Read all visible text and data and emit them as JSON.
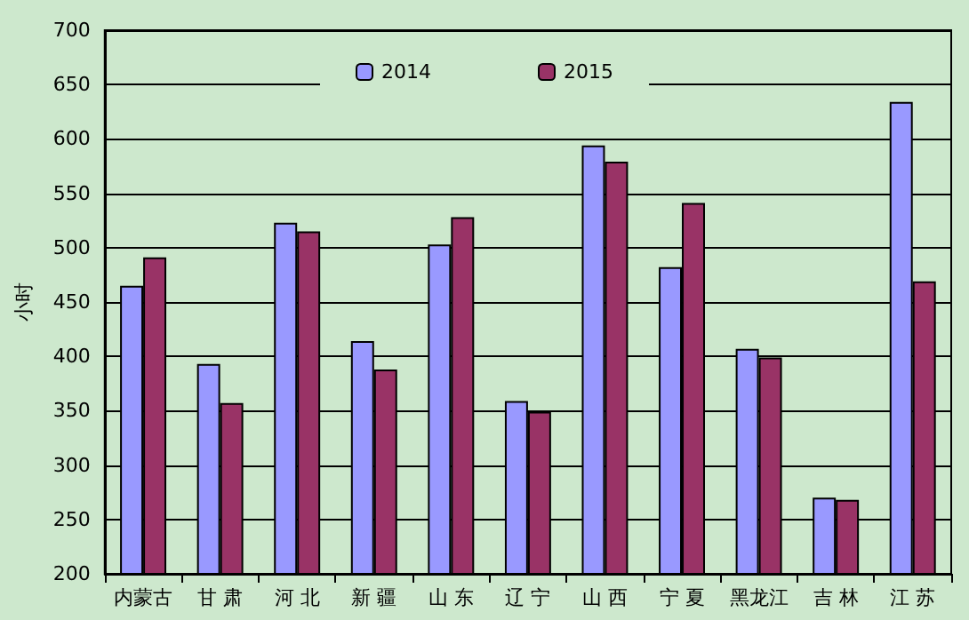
{
  "chart_data": {
    "type": "bar",
    "ylabel": "小时",
    "categories": [
      "内蒙古",
      "甘 肃",
      "河 北",
      "新 疆",
      "山 东",
      "辽 宁",
      "山 西",
      "宁 夏",
      "黑龙江",
      "吉 林",
      "江 苏"
    ],
    "series": [
      {
        "name": "2014",
        "color": "#9999ff",
        "values": [
          465,
          393,
          523,
          414,
          503,
          359,
          594,
          482,
          407,
          270,
          634
        ]
      },
      {
        "name": "2015",
        "color": "#993366",
        "values": [
          491,
          357,
          515,
          388,
          528,
          349,
          579,
          541,
          399,
          268,
          469
        ]
      }
    ],
    "ylim": [
      200,
      700
    ],
    "yticks": [
      200,
      250,
      300,
      350,
      400,
      450,
      500,
      550,
      600,
      650,
      700
    ],
    "grid": "y",
    "legend": "top"
  }
}
